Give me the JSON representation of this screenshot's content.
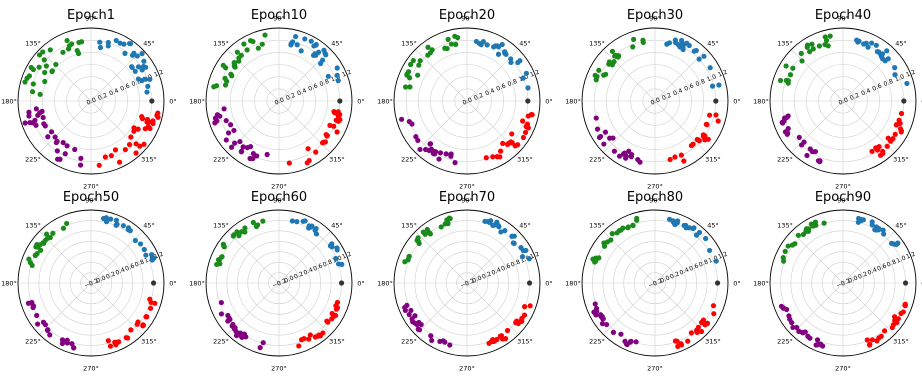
{
  "figure": {
    "background": "#ffffff"
  },
  "colors": {
    "blue": "#1f77b4",
    "green": "#1a8a1a",
    "purple": "#800080",
    "red": "#ff0000",
    "origin": "#333333",
    "grid": "#d0d0d0",
    "frame": "#000000",
    "text": "#000000"
  },
  "chart_data": [
    {
      "type": "scatter",
      "projection": "polar",
      "title": "Epoch1",
      "rlim": [
        0.0,
        1.2
      ],
      "angle_ticks": [
        "0°",
        "45°",
        "90°",
        "135°",
        "180°",
        "225°",
        "270°",
        "315°"
      ],
      "radial_ticks": [
        "0.0",
        "0.2",
        "0.4",
        "0.6",
        "0.8",
        "1.0",
        "1.2"
      ],
      "series": [
        {
          "color": "blue",
          "angle_range_deg": [
            8,
            84
          ],
          "r_range": [
            0.85,
            1.15
          ],
          "count": 28
        },
        {
          "color": "green",
          "angle_range_deg": [
            96,
            174
          ],
          "r_range": [
            0.8,
            1.15
          ],
          "count": 28
        },
        {
          "color": "purple",
          "angle_range_deg": [
            186,
            264
          ],
          "r_range": [
            0.8,
            1.15
          ],
          "count": 28
        },
        {
          "color": "red",
          "angle_range_deg": [
            276,
            354
          ],
          "r_range": [
            0.8,
            1.15
          ],
          "count": 28
        },
        {
          "color": "origin",
          "points": [
            [
              0,
              1.0
            ]
          ]
        }
      ]
    },
    {
      "type": "scatter",
      "projection": "polar",
      "title": "Epoch10",
      "rlim": [
        0.0,
        1.2
      ],
      "angle_ticks": [
        "0°",
        "45°",
        "90°",
        "135°",
        "180°",
        "225°",
        "270°",
        "315°"
      ],
      "radial_ticks": [
        "0.0",
        "0.2",
        "0.4",
        "0.6",
        "0.8",
        "1.0",
        "1.2"
      ],
      "series": [
        {
          "color": "blue",
          "angle_range_deg": [
            10,
            82
          ],
          "r_range": [
            0.9,
            1.12
          ],
          "count": 24
        },
        {
          "color": "green",
          "angle_range_deg": [
            98,
            172
          ],
          "r_range": [
            0.88,
            1.12
          ],
          "count": 24
        },
        {
          "color": "purple",
          "angle_range_deg": [
            188,
            262
          ],
          "r_range": [
            0.88,
            1.12
          ],
          "count": 24
        },
        {
          "color": "red",
          "angle_range_deg": [
            278,
            352
          ],
          "r_range": [
            0.88,
            1.12
          ],
          "count": 24
        },
        {
          "color": "origin",
          "points": [
            [
              0,
              1.0
            ]
          ]
        }
      ]
    },
    {
      "type": "scatter",
      "projection": "polar",
      "title": "Epoch20",
      "rlim": [
        0.0,
        1.2
      ],
      "angle_ticks": [
        "0°",
        "45°",
        "90°",
        "135°",
        "180°",
        "225°",
        "270°",
        "315°"
      ],
      "radial_ticks": [
        "0.0",
        "0.2",
        "0.4",
        "0.6",
        "0.8",
        "1.0",
        "1.2"
      ],
      "series": [
        {
          "color": "blue",
          "angle_range_deg": [
            12,
            82
          ],
          "r_range": [
            0.92,
            1.12
          ],
          "count": 22
        },
        {
          "color": "green",
          "angle_range_deg": [
            98,
            170
          ],
          "r_range": [
            0.9,
            1.12
          ],
          "count": 22
        },
        {
          "color": "purple",
          "angle_range_deg": [
            190,
            260
          ],
          "r_range": [
            0.9,
            1.12
          ],
          "count": 22
        },
        {
          "color": "red",
          "angle_range_deg": [
            280,
            350
          ],
          "r_range": [
            0.9,
            1.12
          ],
          "count": 22
        },
        {
          "color": "origin",
          "points": [
            [
              0,
              1.0
            ]
          ]
        }
      ]
    },
    {
      "type": "scatter",
      "projection": "polar",
      "title": "Epoch30",
      "rlim": [
        0.0,
        1.2
      ],
      "angle_ticks": [
        "0°",
        "45°",
        "90°",
        "135°",
        "180°",
        "225°",
        "270°",
        "315°"
      ],
      "radial_ticks": [
        "0.0",
        "0.2",
        "0.4",
        "0.6",
        "0.8",
        "1.0",
        "1.2"
      ],
      "series": [
        {
          "color": "blue",
          "angle_range_deg": [
            14,
            80
          ],
          "r_range": [
            0.94,
            1.1
          ],
          "count": 20
        },
        {
          "color": "green",
          "angle_range_deg": [
            100,
            168
          ],
          "r_range": [
            0.92,
            1.1
          ],
          "count": 20
        },
        {
          "color": "purple",
          "angle_range_deg": [
            192,
            258
          ],
          "r_range": [
            0.92,
            1.1
          ],
          "count": 20
        },
        {
          "color": "red",
          "angle_range_deg": [
            282,
            348
          ],
          "r_range": [
            0.92,
            1.1
          ],
          "count": 20
        },
        {
          "color": "origin",
          "points": [
            [
              0,
              1.0
            ]
          ]
        }
      ]
    },
    {
      "type": "scatter",
      "projection": "polar",
      "title": "Epoch40",
      "rlim": [
        0.0,
        1.2
      ],
      "angle_ticks": [
        "0°",
        "45°",
        "90°",
        "135°",
        "180°",
        "225°",
        "270°",
        "315°"
      ],
      "radial_ticks": [
        "0.0",
        "0.2",
        "0.4",
        "0.6",
        "0.8",
        "1.0",
        "1.2"
      ],
      "series": [
        {
          "color": "blue",
          "angle_range_deg": [
            14,
            80
          ],
          "r_range": [
            0.95,
            1.1
          ],
          "count": 20
        },
        {
          "color": "green",
          "angle_range_deg": [
            100,
            166
          ],
          "r_range": [
            0.93,
            1.1
          ],
          "count": 20
        },
        {
          "color": "purple",
          "angle_range_deg": [
            194,
            258
          ],
          "r_range": [
            0.93,
            1.1
          ],
          "count": 20
        },
        {
          "color": "red",
          "angle_range_deg": [
            284,
            348
          ],
          "r_range": [
            0.93,
            1.1
          ],
          "count": 20
        },
        {
          "color": "origin",
          "points": [
            [
              0,
              1.0
            ]
          ]
        }
      ]
    },
    {
      "type": "scatter",
      "projection": "polar",
      "title": "Epoch50",
      "rlim": [
        -0.2,
        1.2
      ],
      "angle_ticks": [
        "0°",
        "45°",
        "90°",
        "135°",
        "180°",
        "225°",
        "270°",
        "315°"
      ],
      "radial_ticks": [
        "−0.2",
        "0.0",
        "0.2",
        "0.4",
        "0.6",
        "0.8",
        "1.0",
        "1.2"
      ],
      "series": [
        {
          "color": "blue",
          "angle_range_deg": [
            16,
            80
          ],
          "r_range": [
            0.96,
            1.1
          ],
          "count": 20
        },
        {
          "color": "green",
          "angle_range_deg": [
            100,
            164
          ],
          "r_range": [
            0.95,
            1.1
          ],
          "count": 20
        },
        {
          "color": "purple",
          "angle_range_deg": [
            196,
            258
          ],
          "r_range": [
            0.95,
            1.1
          ],
          "count": 20
        },
        {
          "color": "red",
          "angle_range_deg": [
            286,
            346
          ],
          "r_range": [
            0.95,
            1.1
          ],
          "count": 20
        },
        {
          "color": "origin",
          "points": [
            [
              0,
              1.0
            ]
          ]
        }
      ]
    },
    {
      "type": "scatter",
      "projection": "polar",
      "title": "Epoch60",
      "rlim": [
        -0.2,
        1.2
      ],
      "angle_ticks": [
        "0°",
        "45°",
        "90°",
        "135°",
        "180°",
        "225°",
        "270°",
        "315°"
      ],
      "radial_ticks": [
        "−0.2",
        "0.0",
        "0.2",
        "0.4",
        "0.6",
        "0.8",
        "1.0",
        "1.2"
      ],
      "series": [
        {
          "color": "blue",
          "angle_range_deg": [
            16,
            78
          ],
          "r_range": [
            0.97,
            1.1
          ],
          "count": 20
        },
        {
          "color": "green",
          "angle_range_deg": [
            102,
            164
          ],
          "r_range": [
            0.96,
            1.1
          ],
          "count": 20
        },
        {
          "color": "purple",
          "angle_range_deg": [
            196,
            256
          ],
          "r_range": [
            0.96,
            1.1
          ],
          "count": 20
        },
        {
          "color": "red",
          "angle_range_deg": [
            286,
            346
          ],
          "r_range": [
            0.96,
            1.1
          ],
          "count": 20
        },
        {
          "color": "origin",
          "points": [
            [
              0,
              1.0
            ]
          ]
        }
      ]
    },
    {
      "type": "scatter",
      "projection": "polar",
      "title": "Epoch70",
      "rlim": [
        -0.2,
        1.2
      ],
      "angle_ticks": [
        "0°",
        "45°",
        "90°",
        "135°",
        "180°",
        "225°",
        "270°",
        "315°"
      ],
      "radial_ticks": [
        "−0.2",
        "0.0",
        "0.2",
        "0.4",
        "0.6",
        "0.8",
        "1.0",
        "1.2"
      ],
      "series": [
        {
          "color": "blue",
          "angle_range_deg": [
            18,
            78
          ],
          "r_range": [
            0.97,
            1.1
          ],
          "count": 20
        },
        {
          "color": "green",
          "angle_range_deg": [
            102,
            162
          ],
          "r_range": [
            0.97,
            1.1
          ],
          "count": 20
        },
        {
          "color": "purple",
          "angle_range_deg": [
            198,
            256
          ],
          "r_range": [
            0.97,
            1.1
          ],
          "count": 20
        },
        {
          "color": "red",
          "angle_range_deg": [
            288,
            344
          ],
          "r_range": [
            0.97,
            1.1
          ],
          "count": 20
        },
        {
          "color": "origin",
          "points": [
            [
              0,
              1.0
            ]
          ]
        }
      ]
    },
    {
      "type": "scatter",
      "projection": "polar",
      "title": "Epoch80",
      "rlim": [
        -0.2,
        1.2
      ],
      "angle_ticks": [
        "0°",
        "45°",
        "90°",
        "135°",
        "180°",
        "225°",
        "270°",
        "315°"
      ],
      "radial_ticks": [
        "−0.2",
        "0.0",
        "0.2",
        "0.4",
        "0.6",
        "0.8",
        "1.0",
        "1.2"
      ],
      "series": [
        {
          "color": "blue",
          "angle_range_deg": [
            18,
            78
          ],
          "r_range": [
            0.98,
            1.1
          ],
          "count": 20
        },
        {
          "color": "green",
          "angle_range_deg": [
            102,
            162
          ],
          "r_range": [
            0.97,
            1.1
          ],
          "count": 20
        },
        {
          "color": "purple",
          "angle_range_deg": [
            198,
            256
          ],
          "r_range": [
            0.97,
            1.1
          ],
          "count": 20
        },
        {
          "color": "red",
          "angle_range_deg": [
            288,
            344
          ],
          "r_range": [
            0.97,
            1.1
          ],
          "count": 20
        },
        {
          "color": "origin",
          "points": [
            [
              0,
              1.0
            ]
          ]
        }
      ]
    },
    {
      "type": "scatter",
      "projection": "polar",
      "title": "Epoch90",
      "rlim": [
        -0.2,
        1.2
      ],
      "angle_ticks": [
        "0°",
        "45°",
        "90°",
        "135°",
        "180°",
        "225°",
        "270°",
        "315°"
      ],
      "radial_ticks": [
        "−0.2",
        "0.0",
        "0.2",
        "0.4",
        "0.6",
        "0.8",
        "1.0",
        "1.2"
      ],
      "series": [
        {
          "color": "blue",
          "angle_range_deg": [
            20,
            78
          ],
          "r_range": [
            0.98,
            1.1
          ],
          "count": 20
        },
        {
          "color": "green",
          "angle_range_deg": [
            104,
            160
          ],
          "r_range": [
            0.98,
            1.1
          ],
          "count": 20
        },
        {
          "color": "purple",
          "angle_range_deg": [
            200,
            254
          ],
          "r_range": [
            0.98,
            1.1
          ],
          "count": 20
        },
        {
          "color": "red",
          "angle_range_deg": [
            290,
            344
          ],
          "r_range": [
            0.98,
            1.1
          ],
          "count": 20
        },
        {
          "color": "origin",
          "points": [
            [
              0,
              1.0
            ]
          ]
        }
      ]
    }
  ]
}
